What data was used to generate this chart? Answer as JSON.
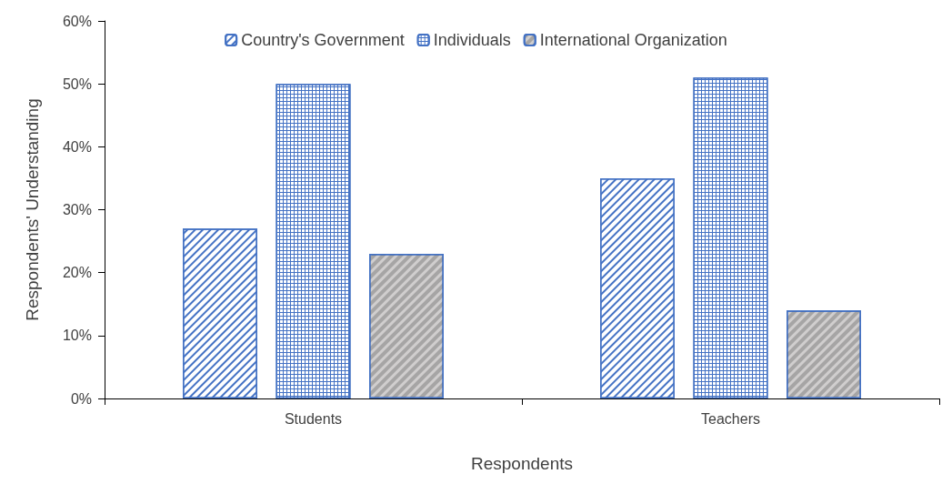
{
  "chart_data": {
    "type": "bar",
    "xlabel": "Respondents",
    "ylabel": "Respondents' Understanding",
    "categories": [
      "Students",
      "Teachers"
    ],
    "series": [
      {
        "name": "Country's Government",
        "color": "#4472c4",
        "values": [
          27,
          35
        ]
      },
      {
        "name": "Individuals",
        "color": "#4472c4",
        "values": [
          50,
          51
        ]
      },
      {
        "name": "International Organization",
        "color": "#d0cece",
        "values": [
          23,
          14
        ]
      }
    ],
    "ylim": [
      0,
      60
    ],
    "yticks": [
      {
        "value": 0,
        "label": "0%"
      },
      {
        "value": 10,
        "label": "10%"
      },
      {
        "value": 20,
        "label": "20%"
      },
      {
        "value": 30,
        "label": "30%"
      },
      {
        "value": 40,
        "label": "40%"
      },
      {
        "value": 50,
        "label": "50%"
      },
      {
        "value": 60,
        "label": "60%"
      }
    ],
    "grid": false,
    "legend": "top"
  }
}
